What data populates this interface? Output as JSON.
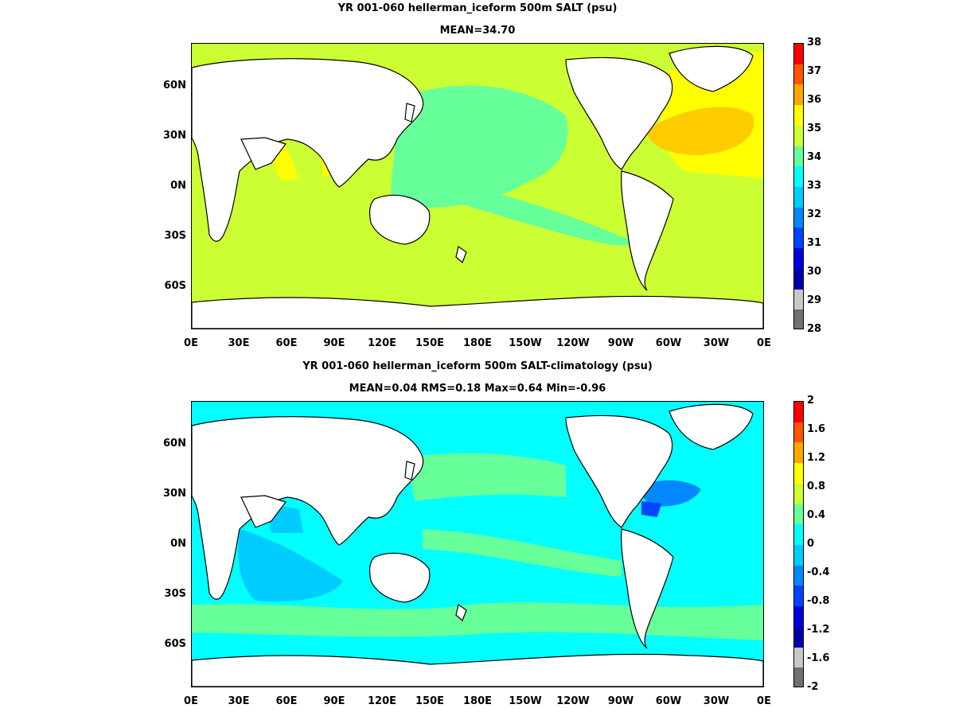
{
  "panels": [
    {
      "id": "top",
      "title_line1": "YR 001-060 hellerman_iceform 500m SALT (psu)",
      "title_line2": "MEAN=34.70",
      "x_ticks": [
        "0E",
        "30E",
        "60E",
        "90E",
        "120E",
        "150E",
        "180E",
        "150W",
        "120W",
        "90W",
        "60W",
        "30W",
        "0E"
      ],
      "y_ticks": [
        "60N",
        "30N",
        "0N",
        "30S",
        "60S"
      ],
      "colorbar": {
        "labels": [
          "38",
          "37",
          "36",
          "35",
          "34",
          "33",
          "32",
          "31",
          "30",
          "29",
          "28"
        ],
        "colors": [
          "#ff0000",
          "#ff5500",
          "#ffa500",
          "#ffff00",
          "#ccff33",
          "#66ff99",
          "#00ffff",
          "#00ccff",
          "#0088ff",
          "#0044ff",
          "#0000dd",
          "#0000aa",
          "#c8c8c8",
          "#707070"
        ]
      },
      "ocean_color": "#ccff33",
      "regions": [
        {
          "name": "north-pacific",
          "color": "#66ff99"
        },
        {
          "name": "north-atlantic",
          "color": "#ffff00"
        },
        {
          "name": "subtropical-atlantic",
          "color": "#ffcc00"
        },
        {
          "name": "arabian-sea",
          "color": "#ffff00"
        }
      ]
    },
    {
      "id": "bottom",
      "title_line1": "YR 001-060 hellerman_iceform 500m SALT-climatology (psu)",
      "title_line2": "MEAN=0.04   RMS=0.18   Max=0.64   Min=-0.96",
      "x_ticks": [
        "0E",
        "30E",
        "60E",
        "90E",
        "120E",
        "150E",
        "180E",
        "150W",
        "120W",
        "90W",
        "60W",
        "30W",
        "0E"
      ],
      "y_ticks": [
        "60N",
        "30N",
        "0N",
        "30S",
        "60S"
      ],
      "colorbar": {
        "labels": [
          "2",
          "1.6",
          "1.2",
          "0.8",
          "0.4",
          "0",
          "-0.4",
          "-0.8",
          "-1.2",
          "-1.6",
          "-2"
        ],
        "colors": [
          "#ff0000",
          "#ff5500",
          "#ffa500",
          "#ffff00",
          "#ccff33",
          "#66ff99",
          "#00ffff",
          "#00ccff",
          "#0088ff",
          "#0044ff",
          "#0000dd",
          "#0000aa",
          "#c8c8c8",
          "#707070"
        ]
      },
      "ocean_color": "#00ffff",
      "regions": [
        {
          "name": "subpolar-band-south",
          "color": "#66ff99"
        },
        {
          "name": "north-pacific-band",
          "color": "#66ff99"
        },
        {
          "name": "indian-ocean-anomaly",
          "color": "#00ccff"
        },
        {
          "name": "gulf-stream-anomaly",
          "color": "#0088ff"
        }
      ]
    }
  ]
}
